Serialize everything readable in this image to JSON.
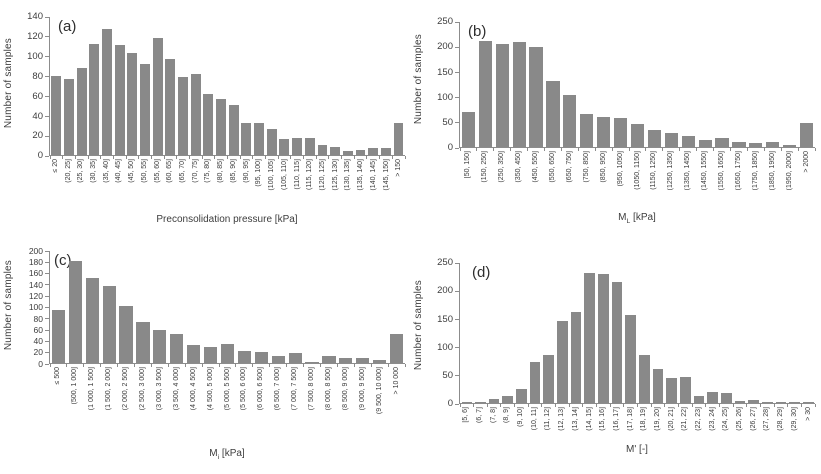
{
  "figure": {
    "ylabel": "Number of samples",
    "bar_color": "#898989",
    "axis_color": "#8c8c8c",
    "text_color": "#3d3d3d",
    "background": "#ffffff"
  },
  "chart_data": [
    {
      "type": "bar",
      "panel_label": "(a)",
      "title": "",
      "xlabel": {
        "base": "Preconsolidation pressure",
        "sub": "",
        "unit": "[kPa]"
      },
      "ylabel": "Number of samples",
      "ylim": [
        0,
        140
      ],
      "ytick_step": 20,
      "grid": false,
      "legend": "none",
      "categories": [
        "≤ 20",
        "(20, 25]",
        "(25, 30]",
        "(30, 35]",
        "(35, 40]",
        "(40, 45]",
        "(45, 50]",
        "(50, 55]",
        "(55, 60]",
        "(60, 65]",
        "(65, 70]",
        "(70, 75]",
        "(75, 80]",
        "(80, 85]",
        "(85, 90]",
        "(90, 95]",
        "(95, 100]",
        "(100, 105]",
        "(105, 110]",
        "(110, 115]",
        "(115, 120]",
        "(120, 125]",
        "(125, 130]",
        "(130, 135]",
        "(135, 140]",
        "(140, 145]",
        "(145, 150]",
        "> 150"
      ],
      "values": [
        80,
        77,
        88,
        112,
        127,
        111,
        103,
        92,
        118,
        97,
        79,
        82,
        61,
        56,
        50,
        32,
        32,
        26,
        16,
        17,
        17,
        10,
        8,
        4,
        5,
        7,
        7,
        32
      ]
    },
    {
      "type": "bar",
      "panel_label": "(b)",
      "title": "",
      "xlabel": {
        "base": "M",
        "sub": "L",
        "unit": "[kPa]"
      },
      "ylabel": "Number of samples",
      "ylim": [
        0,
        250
      ],
      "ytick_step": 50,
      "grid": false,
      "legend": "none",
      "categories": [
        "[50, 150]",
        "(150, 250]",
        "(250, 350]",
        "(350, 450]",
        "(450, 550]",
        "(550, 650]",
        "(650, 750]",
        "(750, 850]",
        "(850, 950]",
        "(950, 1050]",
        "(1050, 1150]",
        "(1150, 1250]",
        "(1250, 1350]",
        "(1350, 1450]",
        "(1450, 1550]",
        "(1550, 1650]",
        "(1650, 1750]",
        "(1750, 1850]",
        "(1850, 1950]",
        "(1950, 2000]",
        "> 2000"
      ],
      "values": [
        70,
        210,
        204,
        209,
        199,
        131,
        103,
        66,
        59,
        58,
        46,
        34,
        27,
        21,
        14,
        17,
        10,
        7,
        9,
        4,
        48
      ]
    },
    {
      "type": "bar",
      "panel_label": "(c)",
      "title": "",
      "xlabel": {
        "base": "M",
        "sub": "i",
        "unit": "[kPa]"
      },
      "ylabel": "Number of samples",
      "ylim": [
        0,
        200
      ],
      "ytick_step": 20,
      "grid": false,
      "legend": "none",
      "categories": [
        "≤ 500",
        "(500, 1 000]",
        "(1 000, 1 500]",
        "(1 500, 2 000]",
        "(2 000, 2 500]",
        "(2 500, 3 000]",
        "(3 000, 3 500]",
        "(3 500, 4 000]",
        "(4 000, 4 500]",
        "(4 500, 5 000]",
        "(5 000, 5 500]",
        "(5 500, 6 000]",
        "(6 000, 6 500]",
        "(6 500, 7 000]",
        "(7 000, 7 500]",
        "(7 500, 8 000]",
        "(8 000, 8 500]",
        "(8 500, 9 000]",
        "(9 000, 9 500]",
        "(9 500, 10 000]",
        "> 10 000"
      ],
      "values": [
        93,
        180,
        150,
        137,
        101,
        72,
        59,
        51,
        32,
        28,
        34,
        21,
        20,
        12,
        17,
        2,
        12,
        9,
        8,
        6,
        51
      ]
    },
    {
      "type": "bar",
      "panel_label": "(d)",
      "title": "",
      "xlabel": {
        "base": "M'",
        "sub": "",
        "unit": "[-]"
      },
      "ylabel": "Number of samples",
      "ylim": [
        0,
        250
      ],
      "ytick_step": 50,
      "grid": false,
      "legend": "none",
      "categories": [
        "[5, 6]",
        "(6, 7]",
        "(7, 8]",
        "(8, 9]",
        "(9, 10]",
        "(10, 11]",
        "(11, 12]",
        "(12, 13]",
        "(13, 14]",
        "(14, 15]",
        "(15, 16]",
        "(16, 17]",
        "(17, 18]",
        "(18, 19]",
        "(19, 20]",
        "(20, 21]",
        "(21, 22]",
        "(22, 23]",
        "(23, 24]",
        "(24, 25]",
        "(25, 26]",
        "(26, 27]",
        "(27, 28]",
        "(28, 29]",
        "(29, 30]",
        "> 30"
      ],
      "values": [
        2,
        2,
        8,
        13,
        24,
        73,
        85,
        145,
        162,
        230,
        228,
        215,
        156,
        85,
        60,
        44,
        46,
        13,
        20,
        18,
        3,
        6,
        1,
        2,
        1,
        1
      ]
    }
  ]
}
